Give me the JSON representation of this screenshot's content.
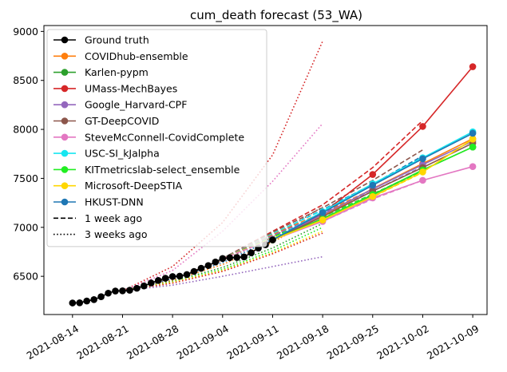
{
  "chart_data": {
    "type": "line",
    "title": "cum_death forecast (53_WA)",
    "xlabel": "",
    "ylabel": "",
    "x_axis": {
      "type": "date",
      "range": [
        "2021-08-10",
        "2021-10-11"
      ],
      "ticks": [
        "2021-08-14",
        "2021-08-21",
        "2021-08-28",
        "2021-09-04",
        "2021-09-11",
        "2021-09-18",
        "2021-09-25",
        "2021-10-02",
        "2021-10-09"
      ]
    },
    "y_axis": {
      "range": [
        6110,
        9060
      ],
      "ticks": [
        6500,
        7000,
        7500,
        8000,
        8500,
        9000
      ]
    },
    "grid": false,
    "legend_placement": "top-left",
    "ground_truth": {
      "name": "Ground truth",
      "color": "#000000",
      "x": [
        "2021-08-14",
        "2021-08-15",
        "2021-08-16",
        "2021-08-17",
        "2021-08-18",
        "2021-08-19",
        "2021-08-20",
        "2021-08-21",
        "2021-08-22",
        "2021-08-23",
        "2021-08-24",
        "2021-08-25",
        "2021-08-26",
        "2021-08-27",
        "2021-08-28",
        "2021-08-29",
        "2021-08-30",
        "2021-08-31",
        "2021-09-01",
        "2021-09-02",
        "2021-09-03",
        "2021-09-04",
        "2021-09-05",
        "2021-09-06",
        "2021-09-07",
        "2021-09-08",
        "2021-09-09",
        "2021-09-10",
        "2021-09-11"
      ],
      "y": [
        6228,
        6230,
        6248,
        6262,
        6292,
        6328,
        6350,
        6352,
        6358,
        6378,
        6402,
        6432,
        6458,
        6480,
        6498,
        6502,
        6518,
        6550,
        6582,
        6610,
        6646,
        6682,
        6690,
        6692,
        6698,
        6740,
        6788,
        6822,
        6872
      ]
    },
    "series": [
      {
        "name": "COVIDhub-ensemble",
        "color": "#ff7f0e",
        "x": [
          "2021-09-11",
          "2021-09-18",
          "2021-09-25",
          "2021-10-02",
          "2021-10-09"
        ],
        "y": [
          6872,
          7115,
          7395,
          7650,
          7905
        ]
      },
      {
        "name": "Karlen-pypm",
        "color": "#2ca02c",
        "x": [
          "2021-09-11",
          "2021-09-18",
          "2021-09-25",
          "2021-10-02",
          "2021-10-09"
        ],
        "y": [
          6872,
          7090,
          7330,
          7585,
          7820
        ]
      },
      {
        "name": "UMass-MechBayes",
        "color": "#d62728",
        "x": [
          "2021-09-11",
          "2021-09-18",
          "2021-09-25",
          "2021-10-02",
          "2021-10-09"
        ],
        "y": [
          6872,
          7145,
          7540,
          8030,
          8640
        ]
      },
      {
        "name": "Google_Harvard-CPF",
        "color": "#9467bd",
        "x": [
          "2021-09-11",
          "2021-09-18",
          "2021-09-25",
          "2021-10-02",
          "2021-10-09"
        ],
        "y": [
          6872,
          7130,
          7390,
          7640,
          7880
        ]
      },
      {
        "name": "GT-DeepCOVID",
        "color": "#8c564b",
        "x": [
          "2021-09-11",
          "2021-09-18",
          "2021-09-25",
          "2021-10-02",
          "2021-10-09"
        ],
        "y": [
          6872,
          7110,
          7370,
          7610,
          7860
        ]
      },
      {
        "name": "SteveMcConnell-CovidComplete",
        "color": "#e377c2",
        "x": [
          "2021-09-11",
          "2021-09-18",
          "2021-09-25",
          "2021-10-02",
          "2021-10-09"
        ],
        "y": [
          6872,
          7060,
          7300,
          7480,
          7620
        ]
      },
      {
        "name": "USC-SI_kJalpha",
        "color": "#17e6f0",
        "x": [
          "2021-09-11",
          "2021-09-18",
          "2021-09-25",
          "2021-10-02",
          "2021-10-09"
        ],
        "y": [
          6872,
          7160,
          7445,
          7710,
          7975
        ]
      },
      {
        "name": "KITmetricslab-select_ensemble",
        "color": "#22ee22",
        "x": [
          "2021-09-11",
          "2021-09-18",
          "2021-09-25",
          "2021-10-02",
          "2021-10-09"
        ],
        "y": [
          6872,
          7085,
          7335,
          7585,
          7820
        ]
      },
      {
        "name": "Microsoft-DeepSTIA",
        "color": "#ffd700",
        "x": [
          "2021-09-11",
          "2021-09-18",
          "2021-09-25",
          "2021-10-02",
          "2021-10-09"
        ],
        "y": [
          6872,
          7075,
          7315,
          7565,
          7900
        ]
      },
      {
        "name": "HKUST-DNN",
        "color": "#1f77b4",
        "x": [
          "2021-09-11",
          "2021-09-18",
          "2021-09-25",
          "2021-10-02",
          "2021-10-09"
        ],
        "y": [
          6872,
          7150,
          7430,
          7700,
          7960
        ]
      }
    ],
    "past_forecasts_1_week": [
      {
        "color": "#d62728",
        "x": [
          "2021-09-04",
          "2021-09-11",
          "2021-09-18",
          "2021-09-25",
          "2021-10-02"
        ],
        "y": [
          6682,
          6960,
          7230,
          7610,
          8090
        ]
      },
      {
        "color": "#8c564b",
        "x": [
          "2021-09-04",
          "2021-09-11",
          "2021-09-18",
          "2021-09-25",
          "2021-10-02"
        ],
        "y": [
          6682,
          6950,
          7200,
          7480,
          7790
        ]
      },
      {
        "color": "#1f77b4",
        "x": [
          "2021-09-04",
          "2021-09-11",
          "2021-09-18",
          "2021-09-25",
          "2021-10-02"
        ],
        "y": [
          6682,
          6930,
          7180,
          7440,
          7730
        ]
      },
      {
        "color": "#17e6f0",
        "x": [
          "2021-09-04",
          "2021-09-11",
          "2021-09-18",
          "2021-09-25",
          "2021-10-02"
        ],
        "y": [
          6682,
          6935,
          7175,
          7430,
          7715
        ]
      },
      {
        "color": "#ff7f0e",
        "x": [
          "2021-09-04",
          "2021-09-11",
          "2021-09-18",
          "2021-09-25",
          "2021-10-02"
        ],
        "y": [
          6682,
          6925,
          7150,
          7390,
          7650
        ]
      },
      {
        "color": "#2ca02c",
        "x": [
          "2021-09-04",
          "2021-09-11",
          "2021-09-18",
          "2021-09-25",
          "2021-10-02"
        ],
        "y": [
          6682,
          6905,
          7110,
          7340,
          7580
        ]
      },
      {
        "color": "#9467bd",
        "x": [
          "2021-09-04",
          "2021-09-11",
          "2021-09-18",
          "2021-09-25",
          "2021-10-02"
        ],
        "y": [
          6682,
          6915,
          7140,
          7370,
          7620
        ]
      },
      {
        "color": "#22ee22",
        "x": [
          "2021-09-04",
          "2021-09-11",
          "2021-09-18",
          "2021-09-25",
          "2021-10-02"
        ],
        "y": [
          6682,
          6900,
          7110,
          7335,
          7575
        ]
      },
      {
        "color": "#ffd700",
        "x": [
          "2021-09-04",
          "2021-09-11",
          "2021-09-18",
          "2021-09-25",
          "2021-10-02"
        ],
        "y": [
          6682,
          6890,
          7080,
          7310,
          7560
        ]
      },
      {
        "color": "#e377c2",
        "x": [
          "2021-09-04",
          "2021-09-11",
          "2021-09-18",
          "2021-09-25",
          "2021-10-02"
        ],
        "y": [
          6682,
          6880,
          7060,
          7290,
          7480
        ]
      }
    ],
    "past_forecasts_3_weeks": [
      {
        "color": "#d62728",
        "x": [
          "2021-08-21",
          "2021-08-28",
          "2021-09-04",
          "2021-09-11",
          "2021-09-18"
        ],
        "y": [
          6352,
          6600,
          7050,
          7740,
          8900
        ]
      },
      {
        "color": "#e377c2",
        "x": [
          "2021-08-21",
          "2021-08-28",
          "2021-09-04",
          "2021-09-11",
          "2021-09-18"
        ],
        "y": [
          6352,
          6560,
          6960,
          7470,
          8060
        ]
      },
      {
        "color": "#8c564b",
        "x": [
          "2021-08-21",
          "2021-08-28",
          "2021-09-04",
          "2021-09-11",
          "2021-09-18"
        ],
        "y": [
          6352,
          6480,
          6660,
          6900,
          7210
        ]
      },
      {
        "color": "#1f77b4",
        "x": [
          "2021-08-21",
          "2021-08-28",
          "2021-09-04",
          "2021-09-11",
          "2021-09-18"
        ],
        "y": [
          6352,
          6470,
          6640,
          6880,
          7160
        ]
      },
      {
        "color": "#ff7f0e",
        "x": [
          "2021-08-21",
          "2021-08-28",
          "2021-09-04",
          "2021-09-11",
          "2021-09-18"
        ],
        "y": [
          6352,
          6460,
          6620,
          6850,
          7120
        ]
      },
      {
        "color": "#2ca02c",
        "x": [
          "2021-08-21",
          "2021-08-28",
          "2021-09-04",
          "2021-09-11",
          "2021-09-18"
        ],
        "y": [
          6352,
          6450,
          6590,
          6790,
          7040
        ]
      },
      {
        "color": "#22ee22",
        "x": [
          "2021-08-21",
          "2021-08-28",
          "2021-09-04",
          "2021-09-11",
          "2021-09-18"
        ],
        "y": [
          6352,
          6440,
          6570,
          6760,
          7000
        ]
      },
      {
        "color": "#ffd700",
        "x": [
          "2021-08-21",
          "2021-08-28",
          "2021-09-04",
          "2021-09-11",
          "2021-09-18"
        ],
        "y": [
          6352,
          6440,
          6560,
          6740,
          6960
        ]
      },
      {
        "color": "#d62728",
        "x": [
          "2021-08-21",
          "2021-08-28",
          "2021-09-04",
          "2021-09-11",
          "2021-09-18"
        ],
        "y": [
          6352,
          6430,
          6550,
          6730,
          6940
        ]
      },
      {
        "color": "#9467bd",
        "x": [
          "2021-08-21",
          "2021-08-28",
          "2021-09-04",
          "2021-09-11",
          "2021-09-18"
        ],
        "y": [
          6352,
          6410,
          6500,
          6600,
          6700
        ]
      }
    ],
    "legend": {
      "entries": [
        {
          "label": "Ground truth",
          "color": "#000000",
          "style": "marker"
        },
        {
          "label": "COVIDhub-ensemble",
          "color": "#ff7f0e",
          "style": "marker"
        },
        {
          "label": "Karlen-pypm",
          "color": "#2ca02c",
          "style": "marker"
        },
        {
          "label": "UMass-MechBayes",
          "color": "#d62728",
          "style": "marker"
        },
        {
          "label": "Google_Harvard-CPF",
          "color": "#9467bd",
          "style": "marker"
        },
        {
          "label": "GT-DeepCOVID",
          "color": "#8c564b",
          "style": "marker"
        },
        {
          "label": "SteveMcConnell-CovidComplete",
          "color": "#e377c2",
          "style": "marker"
        },
        {
          "label": "USC-SI_kJalpha",
          "color": "#17e6f0",
          "style": "marker"
        },
        {
          "label": "KITmetricslab-select_ensemble",
          "color": "#22ee22",
          "style": "marker"
        },
        {
          "label": "Microsoft-DeepSTIA",
          "color": "#ffd700",
          "style": "marker"
        },
        {
          "label": "HKUST-DNN",
          "color": "#1f77b4",
          "style": "marker"
        },
        {
          "label": "1 week ago",
          "color": "#000000",
          "style": "dashed"
        },
        {
          "label": "3 weeks ago",
          "color": "#000000",
          "style": "dotted"
        }
      ]
    }
  }
}
